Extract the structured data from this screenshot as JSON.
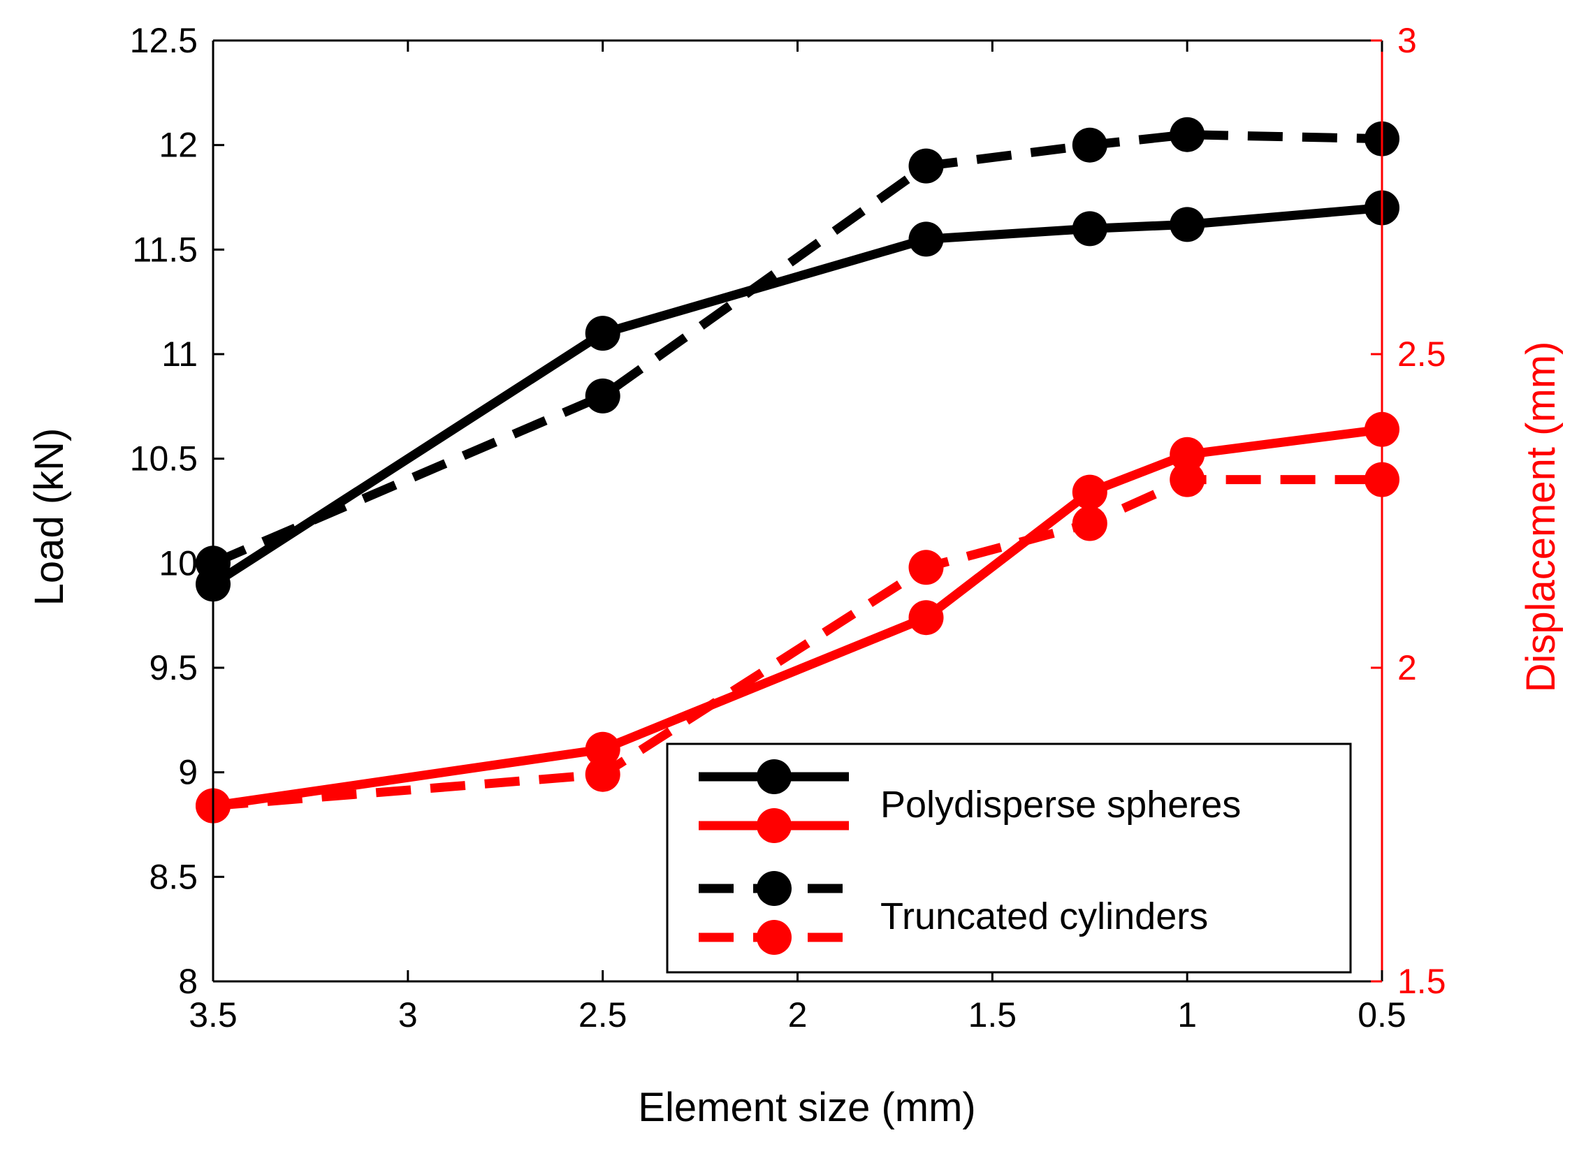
{
  "chart_data": {
    "type": "line",
    "x_axis": {
      "label": "Element size (mm)",
      "range": [
        3.5,
        0.5
      ],
      "reversed": true,
      "ticks": [
        3.5,
        3,
        2.5,
        2,
        1.5,
        1,
        0.5
      ],
      "tick_labels": [
        "3.5",
        "3",
        "2.5",
        "2",
        "1.5",
        "1",
        "0.5"
      ]
    },
    "y_left": {
      "label": "Load (kN)",
      "range": [
        8,
        12.5
      ],
      "ticks": [
        8,
        8.5,
        9,
        9.5,
        10,
        10.5,
        11,
        11.5,
        12,
        12.5
      ],
      "tick_labels": [
        "8",
        "8.5",
        "9",
        "9.5",
        "10",
        "10.5",
        "11",
        "11.5",
        "12",
        "12.5"
      ],
      "color": "#000000"
    },
    "y_right": {
      "label": "Displacement (mm)",
      "range": [
        1.5,
        3
      ],
      "ticks": [
        1.5,
        2,
        2.5,
        3
      ],
      "tick_labels": [
        "1.5",
        "2",
        "2.5",
        "3"
      ],
      "color": "#ff0000"
    },
    "series": [
      {
        "name": "Polydisperse spheres",
        "quantity": "load",
        "axis": "left",
        "style": "solid",
        "color": "#000000",
        "x": [
          3.5,
          2.5,
          1.67,
          1.25,
          1.0,
          0.5
        ],
        "values": [
          9.9,
          11.1,
          11.55,
          11.6,
          11.62,
          11.7
        ]
      },
      {
        "name": "Truncated cylinders",
        "quantity": "load",
        "axis": "left",
        "style": "dashed",
        "color": "#000000",
        "x": [
          3.5,
          2.5,
          1.67,
          1.25,
          1.0,
          0.5
        ],
        "values": [
          10.0,
          10.8,
          11.9,
          12.0,
          12.05,
          12.03
        ]
      },
      {
        "name": "Polydisperse spheres",
        "quantity": "displacement",
        "axis": "right",
        "style": "solid",
        "color": "#ff0000",
        "x": [
          3.5,
          2.5,
          1.67,
          1.25,
          1.0,
          0.5
        ],
        "values": [
          1.78,
          1.87,
          2.08,
          2.28,
          2.34,
          2.38
        ]
      },
      {
        "name": "Truncated cylinders",
        "quantity": "displacement",
        "axis": "right",
        "style": "dashed",
        "color": "#ff0000",
        "x": [
          3.5,
          2.5,
          1.67,
          1.25,
          1.0,
          0.5
        ],
        "values": [
          1.78,
          1.83,
          2.16,
          2.23,
          2.3,
          2.3
        ]
      }
    ],
    "legend": {
      "placement": "bottom-right",
      "entries": [
        "Polydisperse spheres",
        "Truncated cylinders"
      ]
    },
    "grid": false
  }
}
